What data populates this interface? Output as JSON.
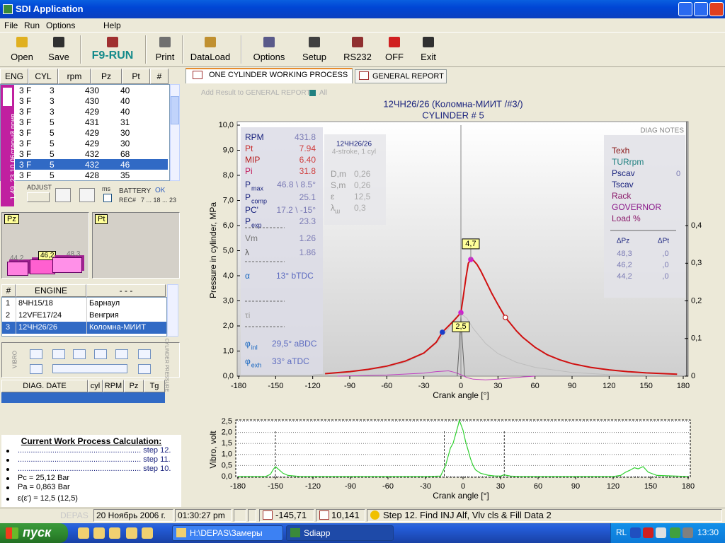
{
  "window": {
    "title": "SDI Application"
  },
  "menu": [
    "File",
    "Run",
    "Options",
    "Help"
  ],
  "toolbar": [
    "Open",
    "Save",
    "F9-RUN",
    "Print",
    "DataLoad",
    "Options",
    "Setup",
    "RS232",
    "OFF",
    "Exit"
  ],
  "records": {
    "columns": [
      "ENG",
      "CYL",
      "rpm",
      "Pz",
      "Pt",
      "#"
    ],
    "rows": [
      [
        "3 F",
        "3",
        "430",
        "40"
      ],
      [
        "3 F",
        "3",
        "430",
        "40"
      ],
      [
        "3 F",
        "3",
        "429",
        "40"
      ],
      [
        "3 F",
        "5",
        "431",
        "31"
      ],
      [
        "3 F",
        "5",
        "429",
        "30"
      ],
      [
        "3 F",
        "5",
        "429",
        "30"
      ],
      [
        "3 F",
        "5",
        "432",
        "68"
      ],
      [
        "3 F",
        "5",
        "432",
        "46"
      ],
      [
        "3 F",
        "5",
        "428",
        "35"
      ]
    ],
    "selected": 7,
    "side_label": "1.49, 23.10.06старый прив"
  },
  "adjust": {
    "label": "ADJUST",
    "ms": "ms",
    "battery": "BATTERY",
    "battery_state": "OK",
    "rec": "REC#",
    "rec_range": "7 ... 18 ... 23"
  },
  "pz_pt": {
    "pz": "Pz",
    "pt": "Pt",
    "values": [
      44.2,
      46.2,
      48.3
    ],
    "value_labels": [
      "44,2",
      "46,2",
      "48,3"
    ],
    "colors": [
      "#ff80e0",
      "#ff60d0",
      "#ff90e8"
    ]
  },
  "engines": {
    "columns": [
      "#",
      "ENGINE",
      "- - -"
    ],
    "rows": [
      [
        "1",
        "8ЧН15/18",
        "Барнаул"
      ],
      [
        "2",
        "12VFE17/24",
        "Венгрия"
      ],
      [
        "3",
        "12ЧН26/26",
        "Коломна-МИИТ"
      ]
    ],
    "selected": 2
  },
  "controls": {
    "vibro": "VIBRO",
    "cylinder": "CYLINDER PRESSURE"
  },
  "diag": {
    "columns": [
      "DIAG. DATE",
      "cyl",
      "RPM",
      "Pz",
      "Tg"
    ]
  },
  "calc": {
    "title": "Current Work Process Calculation:",
    "lines": [
      "......................................................... step 12.",
      "......................................................... step 11.",
      "......................................................... step 10.",
      "Pc = 25,12 Bar",
      "Pa = 0,863 Bar",
      "ε(ε') = 12,5 (12,5)"
    ]
  },
  "tabs": [
    "ONE CYLINDER WORKING PROCESS",
    "GENERAL REPORT"
  ],
  "report": {
    "add": "Add Result to GENERAL REPORT",
    "all": "All"
  },
  "pressure_chart": {
    "type": "line",
    "title": "12ЧН26/26 (Коломна-МИИТ /#3/)",
    "subtitle": "CYLINDER # 5",
    "ylabel": "Pressure in cylinder, MPa",
    "xlabel": "Crank angle [°]",
    "xlim": [
      -180,
      180
    ],
    "xticks": [
      -180,
      -150,
      -120,
      -90,
      -60,
      -30,
      0,
      30,
      60,
      90,
      120,
      150,
      180
    ],
    "ylim": [
      0,
      10
    ],
    "yticks": [
      {
        "value": 0,
        "label": "0,0"
      },
      {
        "value": 1,
        "label": "1,0"
      },
      {
        "value": 2,
        "label": "2,0"
      },
      {
        "value": 3,
        "label": "3,0"
      },
      {
        "value": 4,
        "label": "4,0"
      },
      {
        "value": 5,
        "label": "5,0"
      },
      {
        "value": 6,
        "label": "6,0"
      },
      {
        "value": 7,
        "label": "7,0"
      },
      {
        "value": 8,
        "label": "8,0"
      },
      {
        "value": 9,
        "label": "9,0"
      },
      {
        "value": 10,
        "label": "10,0"
      }
    ],
    "y2lim": [
      0,
      0.667
    ],
    "y2ticks": [
      0,
      {
        "value": 0.1,
        "label": "0,1"
      },
      {
        "value": 0.2,
        "label": "0,2"
      },
      {
        "value": 0.3,
        "label": "0,3"
      },
      {
        "value": 0.4,
        "label": "0,4"
      }
    ],
    "series": [
      {
        "color": "#bdbdbd",
        "x": [
          -120,
          -90,
          -60,
          -45,
          -30,
          -20,
          -10,
          -5,
          0,
          5,
          10,
          20,
          30,
          45,
          60,
          90,
          120,
          150
        ],
        "values": [
          0.05,
          0.15,
          0.35,
          0.55,
          0.9,
          1.3,
          1.9,
          2.3,
          2.5,
          2.3,
          1.9,
          1.3,
          0.9,
          0.55,
          0.35,
          0.15,
          0.06,
          0.03
        ]
      },
      {
        "color": "#c040c0",
        "axis": "y2",
        "x": [
          -100,
          -60,
          -30,
          -20,
          -10,
          -5,
          0,
          5,
          10,
          20,
          30,
          40,
          50,
          60
        ],
        "values": [
          0,
          0.003,
          0.008,
          0.012,
          0.014,
          0.01,
          0.004,
          -0.004,
          -0.008,
          -0.01,
          -0.008,
          -0.005,
          -0.002,
          0
        ]
      },
      {
        "color": "#606060",
        "x": [
          -3,
          -1,
          0,
          1,
          3
        ],
        "values": [
          0,
          1.5,
          2.4,
          1.5,
          0
        ]
      },
      {
        "color": "#d01010",
        "x": [
          -110,
          -90,
          -75,
          -60,
          -45,
          -30,
          -20,
          -15,
          -10,
          -5,
          0,
          2,
          4,
          6,
          8,
          10,
          13,
          16,
          20,
          25,
          30,
          36,
          40,
          45,
          50,
          60,
          70,
          80,
          90,
          105,
          120,
          135,
          150,
          165,
          175
        ],
        "values": [
          0.1,
          0.18,
          0.27,
          0.4,
          0.6,
          0.92,
          1.35,
          1.75,
          2.0,
          2.25,
          2.53,
          3.2,
          3.9,
          4.5,
          4.65,
          4.62,
          4.45,
          4.2,
          3.8,
          3.3,
          2.85,
          2.34,
          2.1,
          1.8,
          1.55,
          1.15,
          0.85,
          0.65,
          0.5,
          0.35,
          0.25,
          0.18,
          0.13,
          0.1,
          0.08
        ]
      }
    ],
    "markers": [
      {
        "x": -15,
        "y": 1.75,
        "color": "#1a3cc8"
      },
      {
        "x": 0,
        "y": 2.53,
        "color": "#d020d0"
      },
      {
        "x": 8,
        "y": 4.65,
        "color": "#d020d0"
      },
      {
        "x": 36,
        "y": 2.34,
        "color": "#e08020",
        "hollow": true
      }
    ],
    "callouts": [
      {
        "x": 8,
        "y": 4.65,
        "label": "4,7"
      },
      {
        "x": 0,
        "y": 2.53,
        "label": "2,5"
      }
    ],
    "params": [
      {
        "name": "RPM",
        "value": "431.8",
        "color": "#1a237e",
        "value_color": "#7b7bb5"
      },
      {
        "name": "Pt",
        "value": "7.94",
        "color": "#c62828",
        "value_color": "#d04040"
      },
      {
        "name": "MIP",
        "value": "6.40",
        "color": "#b71c1c",
        "value_color": "#d04040"
      },
      {
        "name": "Pi",
        "value": "31.8",
        "color": "#c2185b",
        "value_color": "#d04040"
      },
      {
        "name": "P",
        "sub": "max",
        "value": "46.8 \\ 8.5°",
        "color": "#1a237e",
        "value_color": "#7b7bb5"
      },
      {
        "name": "P",
        "sub": "comp",
        "value": "25.1",
        "color": "#1a237e",
        "value_color": "#7b7bb5"
      },
      {
        "name": "PC'",
        "value": "17.2 \\ -15°",
        "color": "#1a237e",
        "value_color": "#7b7bb5"
      },
      {
        "name": "P",
        "sub": "exp",
        "value": "23.3",
        "color": "#1a237e",
        "value_color": "#7b7bb5"
      },
      {
        "name": "Vm",
        "value": "1.26",
        "color": "#777777",
        "value_color": "#7b7bb5"
      },
      {
        "name": "λ",
        "value": "1.86",
        "color": "#555555",
        "value_color": "#7b7bb5"
      },
      {
        "name": "α",
        "value": "13° bTDC",
        "color": "#1565c0",
        "value_color": "#5c6bc0"
      },
      {
        "name": "τi",
        "color": "#9e9e9e"
      },
      {
        "name": "φ",
        "sub": "inl",
        "value": "29,5° aBDC",
        "color": "#1565c0",
        "value_color": "#5c6bc0"
      },
      {
        "name": "φ",
        "sub": "exh",
        "value": "33° aTDC",
        "color": "#1565c0",
        "value_color": "#5c6bc0"
      }
    ],
    "engine_box": {
      "title": "12ЧН26/26",
      "subtitle": "4-stroke, 1 cyl",
      "rows": [
        {
          "name": "D,m",
          "value": "0,26"
        },
        {
          "name": "S,m",
          "value": "0,26"
        },
        {
          "name": "ε",
          "value": "12,5"
        },
        {
          "name": "λ",
          "sub": "ш",
          "value": "0,3"
        }
      ]
    },
    "diag_notes": {
      "title": "DIAG NOTES",
      "items": [
        {
          "name": "Texh",
          "color": "#8b1a1a"
        },
        {
          "name": "TURrpm",
          "color": "#208080"
        },
        {
          "name": "Pscav",
          "value": "0",
          "color": "#1a237e"
        },
        {
          "name": "Tscav",
          "color": "#1a237e"
        },
        {
          "name": "Rack",
          "color": "#8b1a6a"
        },
        {
          "name": "GOVERNOR",
          "color": "#8b1a8b"
        },
        {
          "name": "Load %",
          "color": "#8b1a6a"
        }
      ],
      "delta_headers": [
        "ΔPz",
        "ΔPt"
      ],
      "delta_rows": [
        [
          "48,3",
          ",0"
        ],
        [
          "46,2",
          ",0"
        ],
        [
          "44,2",
          ",0"
        ]
      ]
    }
  },
  "vibro_chart": {
    "type": "line",
    "ylabel": "Vibro, volt",
    "xlabel": "Crank angle [°]",
    "xlim": [
      -180,
      180
    ],
    "xticks": [
      -180,
      -150,
      -120,
      -90,
      -60,
      -30,
      0,
      30,
      60,
      90,
      120,
      150,
      180
    ],
    "ylim": [
      0,
      2.5
    ],
    "yticks": [
      {
        "value": 0,
        "label": "0,0"
      },
      {
        "value": 0.5,
        "label": "0,5"
      },
      {
        "value": 1,
        "label": "1,0"
      },
      {
        "value": 1.5,
        "label": "1,5"
      },
      {
        "value": 2,
        "label": "2,0"
      },
      {
        "value": 2.5,
        "label": "2,5"
      }
    ],
    "grid": true,
    "event_lines": [
      -150,
      -15,
      33
    ],
    "series": [
      {
        "color": "#30d030",
        "x": [
          -180,
          -158,
          -154,
          -152,
          -150,
          -149,
          -147,
          -144,
          -140,
          -130,
          -100,
          -60,
          -30,
          -18,
          -14,
          -12,
          -10,
          -8,
          -6,
          -4,
          -3,
          -2,
          0,
          2,
          4,
          6,
          8,
          10,
          14,
          20,
          25,
          30,
          32,
          33,
          35,
          38,
          45,
          60,
          100,
          120,
          126,
          130,
          134,
          137,
          140,
          144,
          148,
          155,
          180
        ],
        "values": [
          0,
          0,
          0.1,
          0.3,
          0.45,
          0.4,
          0.3,
          0.15,
          0.05,
          0,
          0,
          0,
          0,
          0.02,
          0.5,
          0.9,
          1.3,
          1.5,
          1.9,
          2.3,
          2.55,
          2.4,
          2.1,
          1.6,
          1.2,
          0.8,
          0.5,
          0.3,
          0.15,
          0.06,
          0.03,
          0.02,
          0.06,
          0.08,
          0.05,
          0.02,
          0,
          0,
          0,
          0,
          0.05,
          0.2,
          0.3,
          0.4,
          0.35,
          0.45,
          0.2,
          0.05,
          0
        ]
      }
    ]
  },
  "status": {
    "app": "DEPAS",
    "date": "20 Ноябрь 2006 г.",
    "time": "01:30:27 pm",
    "angle": "-145,71",
    "pressure": "10,141",
    "message": "Step 12. Find INJ Alf, Vlv cls & Fill Data 2"
  },
  "taskbar": {
    "start": "пуск",
    "windows": [
      "H:\\DEPAS\\Замеры",
      "Sdiapp"
    ],
    "lang": "RL",
    "clock": "13:30"
  }
}
